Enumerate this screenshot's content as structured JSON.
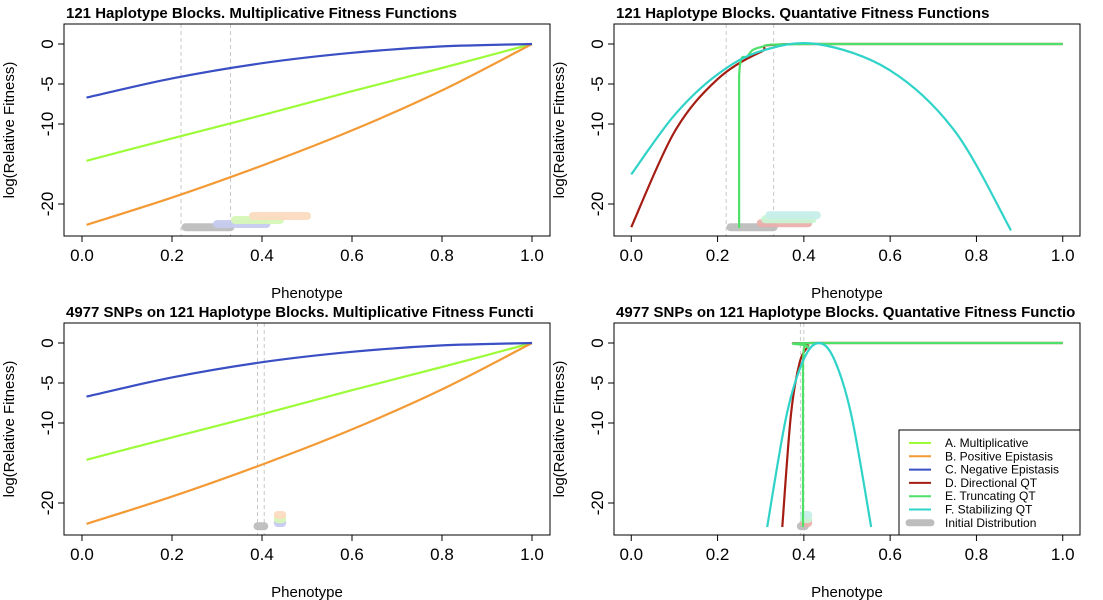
{
  "chart_data": [
    {
      "type": "line",
      "title": "121 Haplotype Blocks. Multiplicative Fitness Functions",
      "xlabel": "Phenotype",
      "ylabel": "log(Relative Fitness)",
      "xlim": [
        0,
        1
      ],
      "ylim": [
        -23,
        0
      ],
      "x_ticks": [
        0.0,
        0.2,
        0.4,
        0.6,
        0.8,
        1.0
      ],
      "x_tick_labels": [
        "0.0",
        "0.2",
        "0.4",
        "0.6",
        "0.8",
        "1.0"
      ],
      "y_ticks": [
        0,
        -5,
        -10,
        -20
      ],
      "y_tick_labels": [
        "0",
        "-5",
        "-10",
        "-20"
      ],
      "series": [
        {
          "name": "A. Multiplicative",
          "color": "#9dfc3a",
          "x": [
            0.01,
            0.2,
            0.4,
            0.6,
            0.8,
            1.0
          ],
          "y": [
            -14.6,
            -11.8,
            -8.9,
            -5.9,
            -3.0,
            0
          ]
        },
        {
          "name": "B. Positive Epistasis",
          "color": "#f39a35",
          "x": [
            0.01,
            0.2,
            0.4,
            0.6,
            0.8,
            1.0
          ],
          "y": [
            -22.6,
            -19.2,
            -15.2,
            -10.8,
            -5.8,
            0
          ]
        },
        {
          "name": "C. Negative Epistasis",
          "color": "#3a4fc4",
          "x": [
            0.01,
            0.2,
            0.4,
            0.6,
            0.8,
            1.0
          ],
          "y": [
            -6.7,
            -4.3,
            -2.4,
            -1.1,
            -0.3,
            0
          ]
        }
      ],
      "vlines": [
        0.22,
        0.33
      ],
      "distributions": [
        {
          "series": "Initial Distribution",
          "color": "#bdbdbd",
          "x": [
            0.23,
            0.33
          ],
          "y": -22.9
        },
        {
          "series": "C. Negative Epistasis",
          "color": "#c7ccf0",
          "x": [
            0.3,
            0.41
          ],
          "y": -22.5
        },
        {
          "series": "A. Multiplicative",
          "color": "#d6f8b8",
          "x": [
            0.34,
            0.44
          ],
          "y": -22.0
        },
        {
          "series": "B. Positive Epistasis",
          "color": "#fbdcc1",
          "x": [
            0.38,
            0.5
          ],
          "y": -21.5
        }
      ]
    },
    {
      "type": "line",
      "title": "121 Haplotype Blocks. Quantative Fitness Functions",
      "xlabel": "Phenotype",
      "ylabel": "log(Relative Fitness)",
      "xlim": [
        0,
        1
      ],
      "ylim": [
        -23,
        0
      ],
      "x_ticks": [
        0.0,
        0.2,
        0.4,
        0.6,
        0.8,
        1.0
      ],
      "x_tick_labels": [
        "0.0",
        "0.2",
        "0.4",
        "0.6",
        "0.8",
        "1.0"
      ],
      "y_ticks": [
        0,
        -5,
        -10,
        -20
      ],
      "y_tick_labels": [
        "0",
        "-5",
        "-10",
        "-20"
      ],
      "series": [
        {
          "name": "D. Directional QT",
          "color": "#a51c12",
          "x": [
            0.0,
            0.1,
            0.2,
            0.3,
            0.38,
            1.0
          ],
          "y": [
            -22.9,
            -11.0,
            -4.4,
            -1.0,
            0,
            0
          ]
        },
        {
          "name": "E. Truncating QT",
          "color": "#4fe06a",
          "x": [
            0.25,
            0.25,
            0.27,
            0.3,
            0.4,
            1.0
          ],
          "y": [
            -23.0,
            -4.0,
            -1.5,
            -0.4,
            0,
            0
          ]
        },
        {
          "name": "F. Stabilizing QT",
          "color": "#2fd3c8",
          "x": [
            0.0,
            0.1,
            0.2,
            0.3,
            0.43,
            0.6,
            0.75,
            0.88
          ],
          "y": [
            -16.3,
            -8.9,
            -3.8,
            -0.9,
            0,
            -3.3,
            -10.9,
            -23.3
          ]
        }
      ],
      "vlines": [
        0.22,
        0.33
      ],
      "distributions": [
        {
          "series": "Initial Distribution",
          "color": "#bdbdbd",
          "x": [
            0.23,
            0.33
          ],
          "y": -22.9
        },
        {
          "series": "D. Directional QT",
          "color": "#eab0ab",
          "x": [
            0.3,
            0.41
          ],
          "y": -22.4
        },
        {
          "series": "E. Truncating QT",
          "color": "#c9f5d3",
          "x": [
            0.31,
            0.42
          ],
          "y": -21.9
        },
        {
          "series": "F. Stabilizing QT",
          "color": "#c7efe9",
          "x": [
            0.32,
            0.43
          ],
          "y": -21.4
        }
      ]
    },
    {
      "type": "line",
      "title": "4977 SNPs on 121 Haplotype Blocks. Multiplicative Fitness Functi",
      "xlabel": "Phenotype",
      "ylabel": "log(Relative Fitness)",
      "xlim": [
        0,
        1
      ],
      "ylim": [
        -23,
        0
      ],
      "x_ticks": [
        0.0,
        0.2,
        0.4,
        0.6,
        0.8,
        1.0
      ],
      "x_tick_labels": [
        "0.0",
        "0.2",
        "0.4",
        "0.6",
        "0.8",
        "1.0"
      ],
      "y_ticks": [
        0,
        -5,
        -10,
        -20
      ],
      "y_tick_labels": [
        "0",
        "-5",
        "-10",
        "-20"
      ],
      "series": [
        {
          "name": "A. Multiplicative",
          "color": "#9dfc3a",
          "x": [
            0.01,
            0.2,
            0.4,
            0.6,
            0.8,
            1.0
          ],
          "y": [
            -14.6,
            -11.8,
            -8.9,
            -5.9,
            -3.0,
            0
          ]
        },
        {
          "name": "B. Positive Epistasis",
          "color": "#f39a35",
          "x": [
            0.01,
            0.2,
            0.4,
            0.6,
            0.8,
            1.0
          ],
          "y": [
            -22.6,
            -19.2,
            -15.2,
            -10.8,
            -5.8,
            0
          ]
        },
        {
          "name": "C. Negative Epistasis",
          "color": "#3a4fc4",
          "x": [
            0.01,
            0.2,
            0.4,
            0.6,
            0.8,
            1.0
          ],
          "y": [
            -6.7,
            -4.3,
            -2.4,
            -1.1,
            -0.3,
            0
          ]
        }
      ],
      "vlines": [
        0.39,
        0.405
      ],
      "distributions": [
        {
          "series": "Initial Distribution",
          "color": "#bdbdbd",
          "x": [
            0.39,
            0.405
          ],
          "y": -22.9
        },
        {
          "series": "C. Negative Epistasis",
          "color": "#c7ccf0",
          "x": [
            0.435,
            0.445
          ],
          "y": -22.5
        },
        {
          "series": "A. Multiplicative",
          "color": "#d6f8b8",
          "x": [
            0.435,
            0.445
          ],
          "y": -22.0
        },
        {
          "series": "B. Positive Epistasis",
          "color": "#fbdcc1",
          "x": [
            0.435,
            0.445
          ],
          "y": -21.5
        }
      ]
    },
    {
      "type": "line",
      "title": "4977 SNPs on 121 Haplotype Blocks. Quantative Fitness Functio",
      "xlabel": "Phenotype",
      "ylabel": "log(Relative Fitness)",
      "xlim": [
        0,
        1
      ],
      "ylim": [
        -23,
        0
      ],
      "x_ticks": [
        0.0,
        0.2,
        0.4,
        0.6,
        0.8,
        1.0
      ],
      "x_tick_labels": [
        "0.0",
        "0.2",
        "0.4",
        "0.6",
        "0.8",
        "1.0"
      ],
      "y_ticks": [
        0,
        -5,
        -10,
        -20
      ],
      "y_tick_labels": [
        "0",
        "-5",
        "-10",
        "-20"
      ],
      "series": [
        {
          "name": "D. Directional QT",
          "color": "#a51c12",
          "x": [
            0.35,
            0.37,
            0.39,
            0.41,
            0.42,
            1.0
          ],
          "y": [
            -23.0,
            -9.0,
            -2.5,
            -0.4,
            0,
            0
          ]
        },
        {
          "name": "E. Truncating QT",
          "color": "#4fe06a",
          "x": [
            0.398,
            0.398,
            0.41,
            0.42,
            1.0
          ],
          "y": [
            -23.0,
            -2.5,
            -0.5,
            0,
            0
          ]
        },
        {
          "name": "F. Stabilizing QT",
          "color": "#2fd3c8",
          "x": [
            0.315,
            0.36,
            0.4,
            0.435,
            0.47,
            0.51,
            0.556
          ],
          "y": [
            -23.0,
            -9.0,
            -2.0,
            0,
            -2.0,
            -9.0,
            -23.0
          ]
        }
      ],
      "vlines": [
        0.392,
        0.4
      ],
      "distributions": [
        {
          "series": "Initial Distribution",
          "color": "#bdbdbd",
          "x": [
            0.393,
            0.402
          ],
          "y": -22.9
        },
        {
          "series": "D. Directional QT",
          "color": "#eab0ab",
          "x": [
            0.4,
            0.41
          ],
          "y": -22.5
        },
        {
          "series": "E. Truncating QT",
          "color": "#c9f5d3",
          "x": [
            0.4,
            0.41
          ],
          "y": -22.0
        },
        {
          "series": "F. Stabilizing QT",
          "color": "#c7efe9",
          "x": [
            0.4,
            0.41
          ],
          "y": -21.5
        }
      ],
      "legend": {
        "placement": "bottom-right",
        "entries": [
          {
            "label": "A. Multiplicative",
            "color": "#9dfc3a"
          },
          {
            "label": "B. Positive Epistasis",
            "color": "#f39a35"
          },
          {
            "label": "C. Negative Epistasis",
            "color": "#3a4fc4"
          },
          {
            "label": "D. Directional QT",
            "color": "#a51c12"
          },
          {
            "label": "E. Truncating QT",
            "color": "#4fe06a"
          },
          {
            "label": "F. Stabilizing QT",
            "color": "#2fd3c8"
          },
          {
            "label": "Initial Distribution",
            "color": "#bdbdbd"
          }
        ]
      }
    }
  ]
}
